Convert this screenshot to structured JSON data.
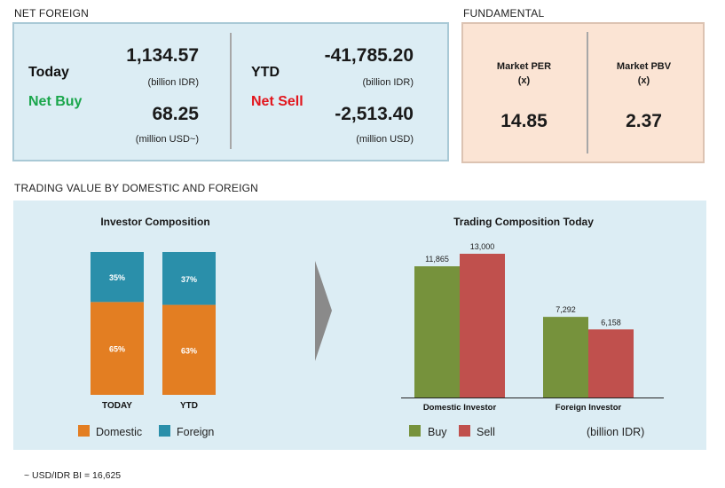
{
  "net_foreign": {
    "section_title": "NET FOREIGN",
    "today": {
      "label": "Today",
      "status": "Net Buy",
      "value_idr": "1,134.57",
      "unit_idr": "(billion IDR)",
      "value_usd": "68.25",
      "unit_usd": "(million USD~)"
    },
    "ytd": {
      "label": "YTD",
      "status": "Net Sell",
      "value_idr": "-41,785.20",
      "unit_idr": "(billion IDR)",
      "value_usd": "-2,513.40",
      "unit_usd": "(million USD)"
    }
  },
  "fundamental": {
    "section_title": "FUNDAMENTAL",
    "per": {
      "label": "Market PER",
      "unit": "(x)",
      "value": "14.85"
    },
    "pbv": {
      "label": "Market PBV",
      "unit": "(x)",
      "value": "2.37"
    }
  },
  "trading_value": {
    "section_title": "TRADING VALUE BY DOMESTIC AND FOREIGN"
  },
  "colors": {
    "domestic": "#e37e22",
    "foreign": "#2a8faa",
    "buy": "#76923c",
    "sell": "#c0504d",
    "arrow": "#8a8a8a"
  },
  "chart_data": [
    {
      "type": "bar",
      "stacked": true,
      "percent": true,
      "title": "Investor Composition",
      "categories": [
        "TODAY",
        "YTD"
      ],
      "series": [
        {
          "name": "Domestic",
          "values": [
            65,
            63
          ],
          "labels": [
            "65%",
            "63%"
          ]
        },
        {
          "name": "Foreign",
          "values": [
            35,
            37
          ],
          "labels": [
            "35%",
            "37%"
          ]
        }
      ],
      "ylim": [
        0,
        100
      ],
      "legend": "bottom"
    },
    {
      "type": "bar",
      "title": "Trading Composition Today",
      "categories": [
        "Domestic Investor",
        "Foreign Investor"
      ],
      "series": [
        {
          "name": "Buy",
          "values": [
            11865,
            7292
          ],
          "labels": [
            "11,865",
            "7,292"
          ]
        },
        {
          "name": "Sell",
          "values": [
            13000,
            6158
          ],
          "labels": [
            "13,000",
            "6,158"
          ]
        }
      ],
      "unit_note": "(billion IDR)",
      "ylim": [
        0,
        13000
      ],
      "legend": "bottom"
    }
  ],
  "footnote": "~ USD/IDR BI = 16,625"
}
